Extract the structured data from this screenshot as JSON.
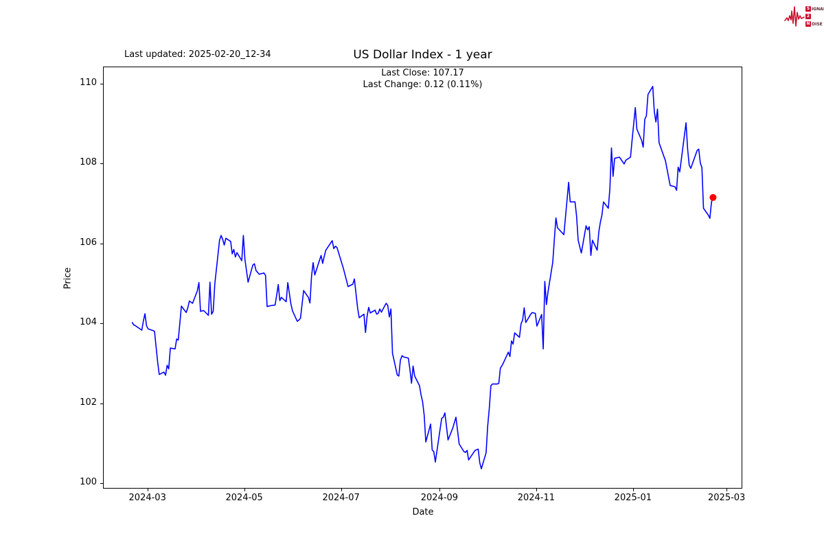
{
  "header": {
    "last_updated": "Last updated: 2025-02-20_12-34",
    "title": "US Dollar Index - 1 year",
    "subtitle_line1": "Last Close: 107.17",
    "subtitle_line2": "Last Change: 0.12 (0.11%)"
  },
  "logo": {
    "color": "#c8102e",
    "rows": [
      {
        "initial": "S",
        "rest": "IGNAL"
      },
      {
        "initial": "2",
        "rest": ""
      },
      {
        "initial": "N",
        "rest": "OISE"
      }
    ]
  },
  "chart_data": {
    "type": "line",
    "title": "US Dollar Index - 1 year",
    "xlabel": "Date",
    "ylabel": "Price",
    "grid": false,
    "legend": "none",
    "line_color": "#0000ff",
    "marker_color": "#ff0000",
    "xlim": [
      "2024-02-02",
      "2025-03-10"
    ],
    "ylim": [
      99.9,
      110.43
    ],
    "y_ticks": [
      100,
      102,
      104,
      106,
      108,
      110
    ],
    "x_ticks": [
      {
        "label": "2024-03",
        "date": "2024-03-01"
      },
      {
        "label": "2024-05",
        "date": "2024-05-01"
      },
      {
        "label": "2024-07",
        "date": "2024-07-01"
      },
      {
        "label": "2024-09",
        "date": "2024-09-01"
      },
      {
        "label": "2024-11",
        "date": "2024-11-01"
      },
      {
        "label": "2025-01",
        "date": "2025-01-01"
      },
      {
        "label": "2025-03",
        "date": "2025-03-01"
      }
    ],
    "last_point": {
      "date": "2025-02-20",
      "close": 107.17,
      "change": 0.12,
      "change_pct": "0.11%"
    },
    "series": [
      {
        "name": "US Dollar Index",
        "points": [
          [
            "2024-02-20",
            104.04
          ],
          [
            "2024-02-21",
            103.98
          ],
          [
            "2024-02-22",
            103.96
          ],
          [
            "2024-02-26",
            103.85
          ],
          [
            "2024-02-27",
            104.08
          ],
          [
            "2024-02-28",
            104.26
          ],
          [
            "2024-02-29",
            103.96
          ],
          [
            "2024-03-01",
            103.88
          ],
          [
            "2024-03-04",
            103.84
          ],
          [
            "2024-03-05",
            103.82
          ],
          [
            "2024-03-07",
            103.05
          ],
          [
            "2024-03-08",
            102.74
          ],
          [
            "2024-03-11",
            102.8
          ],
          [
            "2024-03-12",
            102.72
          ],
          [
            "2024-03-13",
            102.97
          ],
          [
            "2024-03-14",
            102.88
          ],
          [
            "2024-03-15",
            103.4
          ],
          [
            "2024-03-18",
            103.38
          ],
          [
            "2024-03-19",
            103.63
          ],
          [
            "2024-03-20",
            103.6
          ],
          [
            "2024-03-22",
            104.45
          ],
          [
            "2024-03-25",
            104.29
          ],
          [
            "2024-03-26",
            104.41
          ],
          [
            "2024-03-27",
            104.58
          ],
          [
            "2024-03-29",
            104.52
          ],
          [
            "2024-04-01",
            104.83
          ],
          [
            "2024-04-02",
            105.04
          ],
          [
            "2024-04-03",
            104.32
          ],
          [
            "2024-04-05",
            104.34
          ],
          [
            "2024-04-08",
            104.22
          ],
          [
            "2024-04-09",
            105.05
          ],
          [
            "2024-04-10",
            104.25
          ],
          [
            "2024-04-11",
            104.32
          ],
          [
            "2024-04-12",
            105.0
          ],
          [
            "2024-04-15",
            106.1
          ],
          [
            "2024-04-16",
            106.22
          ],
          [
            "2024-04-17",
            106.12
          ],
          [
            "2024-04-18",
            105.98
          ],
          [
            "2024-04-19",
            106.15
          ],
          [
            "2024-04-22",
            106.07
          ],
          [
            "2024-04-23",
            105.76
          ],
          [
            "2024-04-24",
            105.87
          ],
          [
            "2024-04-25",
            105.68
          ],
          [
            "2024-04-26",
            105.79
          ],
          [
            "2024-04-29",
            105.59
          ],
          [
            "2024-04-30",
            106.22
          ],
          [
            "2024-05-01",
            105.62
          ],
          [
            "2024-05-03",
            105.05
          ],
          [
            "2024-05-06",
            105.48
          ],
          [
            "2024-05-07",
            105.51
          ],
          [
            "2024-05-08",
            105.34
          ],
          [
            "2024-05-10",
            105.25
          ],
          [
            "2024-05-13",
            105.28
          ],
          [
            "2024-05-14",
            105.22
          ],
          [
            "2024-05-15",
            104.44
          ],
          [
            "2024-05-17",
            104.46
          ],
          [
            "2024-05-20",
            104.48
          ],
          [
            "2024-05-21",
            104.72
          ],
          [
            "2024-05-22",
            104.99
          ],
          [
            "2024-05-23",
            104.59
          ],
          [
            "2024-05-24",
            104.67
          ],
          [
            "2024-05-27",
            104.56
          ],
          [
            "2024-05-28",
            105.04
          ],
          [
            "2024-05-30",
            104.5
          ],
          [
            "2024-05-31",
            104.33
          ],
          [
            "2024-06-03",
            104.07
          ],
          [
            "2024-06-04",
            104.1
          ],
          [
            "2024-06-05",
            104.15
          ],
          [
            "2024-06-07",
            104.84
          ],
          [
            "2024-06-10",
            104.67
          ],
          [
            "2024-06-11",
            104.53
          ],
          [
            "2024-06-12",
            105.2
          ],
          [
            "2024-06-13",
            105.54
          ],
          [
            "2024-06-14",
            105.23
          ],
          [
            "2024-06-17",
            105.6
          ],
          [
            "2024-06-18",
            105.72
          ],
          [
            "2024-06-19",
            105.52
          ],
          [
            "2024-06-20",
            105.7
          ],
          [
            "2024-06-21",
            105.85
          ],
          [
            "2024-06-25",
            106.09
          ],
          [
            "2024-06-26",
            105.89
          ],
          [
            "2024-06-27",
            105.95
          ],
          [
            "2024-06-28",
            105.92
          ],
          [
            "2024-07-02",
            105.4
          ],
          [
            "2024-07-05",
            104.94
          ],
          [
            "2024-07-08",
            105.0
          ],
          [
            "2024-07-09",
            105.13
          ],
          [
            "2024-07-11",
            104.4
          ],
          [
            "2024-07-12",
            104.16
          ],
          [
            "2024-07-15",
            104.25
          ],
          [
            "2024-07-16",
            103.79
          ],
          [
            "2024-07-17",
            104.2
          ],
          [
            "2024-07-18",
            104.42
          ],
          [
            "2024-07-19",
            104.28
          ],
          [
            "2024-07-22",
            104.35
          ],
          [
            "2024-07-23",
            104.25
          ],
          [
            "2024-07-24",
            104.27
          ],
          [
            "2024-07-25",
            104.38
          ],
          [
            "2024-07-26",
            104.3
          ],
          [
            "2024-07-29",
            104.52
          ],
          [
            "2024-07-30",
            104.47
          ],
          [
            "2024-07-31",
            104.18
          ],
          [
            "2024-08-01",
            104.38
          ],
          [
            "2024-08-02",
            103.27
          ],
          [
            "2024-08-05",
            102.73
          ],
          [
            "2024-08-06",
            102.7
          ],
          [
            "2024-08-07",
            103.1
          ],
          [
            "2024-08-08",
            103.21
          ],
          [
            "2024-08-09",
            103.18
          ],
          [
            "2024-08-12",
            103.15
          ],
          [
            "2024-08-13",
            102.86
          ],
          [
            "2024-08-14",
            102.52
          ],
          [
            "2024-08-15",
            102.95
          ],
          [
            "2024-08-16",
            102.7
          ],
          [
            "2024-08-19",
            102.46
          ],
          [
            "2024-08-20",
            102.23
          ],
          [
            "2024-08-21",
            102.05
          ],
          [
            "2024-08-22",
            101.71
          ],
          [
            "2024-08-23",
            101.05
          ],
          [
            "2024-08-26",
            101.5
          ],
          [
            "2024-08-27",
            100.85
          ],
          [
            "2024-08-28",
            100.81
          ],
          [
            "2024-08-29",
            100.55
          ],
          [
            "2024-09-02",
            101.64
          ],
          [
            "2024-09-03",
            101.67
          ],
          [
            "2024-09-04",
            101.78
          ],
          [
            "2024-09-06",
            101.1
          ],
          [
            "2024-09-09",
            101.4
          ],
          [
            "2024-09-11",
            101.67
          ],
          [
            "2024-09-13",
            101.0
          ],
          [
            "2024-09-16",
            100.81
          ],
          [
            "2024-09-17",
            100.79
          ],
          [
            "2024-09-18",
            100.84
          ],
          [
            "2024-09-19",
            100.6
          ],
          [
            "2024-09-23",
            100.84
          ],
          [
            "2024-09-25",
            100.87
          ],
          [
            "2024-09-26",
            100.53
          ],
          [
            "2024-09-27",
            100.38
          ],
          [
            "2024-09-30",
            100.78
          ],
          [
            "2024-10-01",
            101.44
          ],
          [
            "2024-10-02",
            101.9
          ],
          [
            "2024-10-03",
            102.46
          ],
          [
            "2024-10-04",
            102.5
          ],
          [
            "2024-10-07",
            102.5
          ],
          [
            "2024-10-08",
            102.52
          ],
          [
            "2024-10-09",
            102.9
          ],
          [
            "2024-10-10",
            102.96
          ],
          [
            "2024-10-11",
            103.04
          ],
          [
            "2024-10-14",
            103.3
          ],
          [
            "2024-10-15",
            103.19
          ],
          [
            "2024-10-16",
            103.58
          ],
          [
            "2024-10-17",
            103.5
          ],
          [
            "2024-10-18",
            103.78
          ],
          [
            "2024-10-21",
            103.67
          ],
          [
            "2024-10-22",
            104.01
          ],
          [
            "2024-10-23",
            104.1
          ],
          [
            "2024-10-24",
            104.41
          ],
          [
            "2024-10-25",
            104.04
          ],
          [
            "2024-10-28",
            104.24
          ],
          [
            "2024-10-29",
            104.29
          ],
          [
            "2024-10-31",
            104.27
          ],
          [
            "2024-11-01",
            103.95
          ],
          [
            "2024-11-04",
            104.24
          ],
          [
            "2024-11-05",
            103.38
          ],
          [
            "2024-11-06",
            105.07
          ],
          [
            "2024-11-07",
            104.49
          ],
          [
            "2024-11-08",
            104.81
          ],
          [
            "2024-11-11",
            105.55
          ],
          [
            "2024-11-12",
            106.12
          ],
          [
            "2024-11-13",
            106.66
          ],
          [
            "2024-11-14",
            106.41
          ],
          [
            "2024-11-18",
            106.24
          ],
          [
            "2024-11-21",
            107.55
          ],
          [
            "2024-11-22",
            107.06
          ],
          [
            "2024-11-25",
            107.06
          ],
          [
            "2024-11-26",
            106.7
          ],
          [
            "2024-11-27",
            106.1
          ],
          [
            "2024-11-29",
            105.78
          ],
          [
            "2024-12-02",
            106.46
          ],
          [
            "2024-12-03",
            106.36
          ],
          [
            "2024-12-04",
            106.44
          ],
          [
            "2024-12-05",
            105.72
          ],
          [
            "2024-12-06",
            106.1
          ],
          [
            "2024-12-09",
            105.85
          ],
          [
            "2024-12-10",
            106.3
          ],
          [
            "2024-12-11",
            106.55
          ],
          [
            "2024-12-12",
            106.73
          ],
          [
            "2024-12-13",
            107.06
          ],
          [
            "2024-12-16",
            106.9
          ],
          [
            "2024-12-17",
            107.4
          ],
          [
            "2024-12-18",
            108.41
          ],
          [
            "2024-12-19",
            107.7
          ],
          [
            "2024-12-20",
            108.15
          ],
          [
            "2024-12-23",
            108.18
          ],
          [
            "2024-12-26",
            108.01
          ],
          [
            "2024-12-27",
            108.1
          ],
          [
            "2024-12-30",
            108.18
          ],
          [
            "2024-12-31",
            108.6
          ],
          [
            "2025-01-02",
            109.42
          ],
          [
            "2025-01-03",
            108.88
          ],
          [
            "2025-01-06",
            108.6
          ],
          [
            "2025-01-07",
            108.43
          ],
          [
            "2025-01-08",
            109.13
          ],
          [
            "2025-01-09",
            109.21
          ],
          [
            "2025-01-10",
            109.75
          ],
          [
            "2025-01-13",
            109.95
          ],
          [
            "2025-01-14",
            109.32
          ],
          [
            "2025-01-15",
            109.06
          ],
          [
            "2025-01-16",
            109.38
          ],
          [
            "2025-01-17",
            108.54
          ],
          [
            "2025-01-21",
            108.09
          ],
          [
            "2025-01-24",
            107.47
          ],
          [
            "2025-01-27",
            107.44
          ],
          [
            "2025-01-28",
            107.35
          ],
          [
            "2025-01-29",
            107.93
          ],
          [
            "2025-01-30",
            107.81
          ],
          [
            "2025-02-03",
            109.04
          ],
          [
            "2025-02-04",
            108.38
          ],
          [
            "2025-02-05",
            107.98
          ],
          [
            "2025-02-06",
            107.9
          ],
          [
            "2025-02-10",
            108.35
          ],
          [
            "2025-02-11",
            108.38
          ],
          [
            "2025-02-12",
            108.03
          ],
          [
            "2025-02-13",
            107.92
          ],
          [
            "2025-02-14",
            106.9
          ],
          [
            "2025-02-17",
            106.73
          ],
          [
            "2025-02-18",
            106.65
          ],
          [
            "2025-02-19",
            107.05
          ],
          [
            "2025-02-20",
            107.17
          ]
        ]
      }
    ]
  }
}
